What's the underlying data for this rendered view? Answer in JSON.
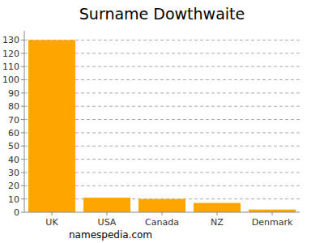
{
  "chart_data": {
    "type": "bar",
    "title": "Surname Dowthwaite",
    "categories": [
      "UK",
      "USA",
      "Canada",
      "NZ",
      "Denmark"
    ],
    "values": [
      130,
      11,
      10,
      7,
      2
    ],
    "color": "#ffa500",
    "ylim": [
      0,
      137
    ],
    "yticks": [
      0,
      10,
      20,
      30,
      40,
      50,
      60,
      70,
      80,
      90,
      100,
      110,
      120,
      130
    ],
    "grid": true,
    "annotations": [
      "namespedia.com"
    ]
  }
}
